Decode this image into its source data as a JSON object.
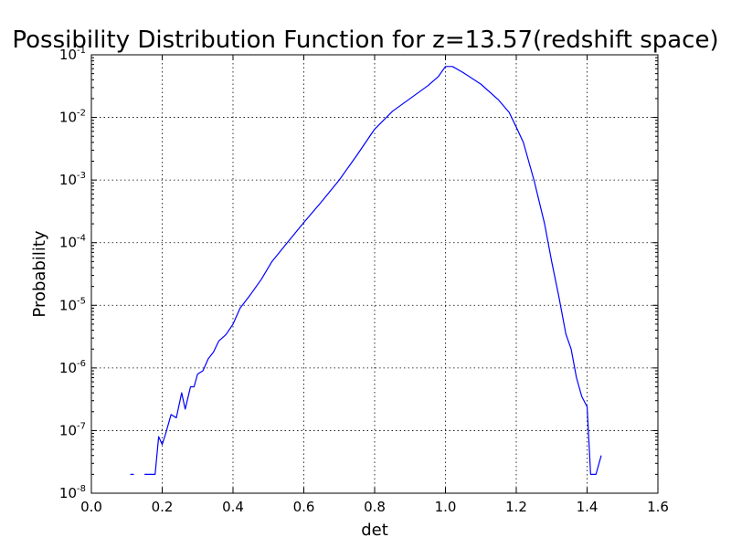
{
  "chart_data": {
    "type": "line",
    "title": "Possibility Distribution Function for z=13.57(redshift space)",
    "xlabel": "det",
    "ylabel": "Probability",
    "xlim": [
      0.0,
      1.6
    ],
    "ylim_log10": [
      -8,
      -1
    ],
    "yscale": "log",
    "grid": true,
    "line_color": "#0000ff",
    "x_ticks": [
      {
        "value": 0.0,
        "label": "0.0"
      },
      {
        "value": 0.2,
        "label": "0.2"
      },
      {
        "value": 0.4,
        "label": "0.4"
      },
      {
        "value": 0.6,
        "label": "0.6"
      },
      {
        "value": 0.8,
        "label": "0.8"
      },
      {
        "value": 1.0,
        "label": "1.0"
      },
      {
        "value": 1.2,
        "label": "1.2"
      },
      {
        "value": 1.4,
        "label": "1.4"
      },
      {
        "value": 1.6,
        "label": "1.6"
      }
    ],
    "y_ticks": [
      {
        "exp": -8,
        "base": "10",
        "power": "-8"
      },
      {
        "exp": -7,
        "base": "10",
        "power": "-7"
      },
      {
        "exp": -6,
        "base": "10",
        "power": "-6"
      },
      {
        "exp": -5,
        "base": "10",
        "power": "-5"
      },
      {
        "exp": -4,
        "base": "10",
        "power": "-4"
      },
      {
        "exp": -3,
        "base": "10",
        "power": "-3"
      },
      {
        "exp": -2,
        "base": "10",
        "power": "-2"
      },
      {
        "exp": -1,
        "base": "10",
        "power": "-1"
      }
    ],
    "series": [
      {
        "segments": [
          [
            [
              0.11,
              2e-08
            ],
            [
              0.12,
              2e-08
            ]
          ],
          [
            [
              0.15,
              2e-08
            ],
            [
              0.18,
              2e-08
            ],
            [
              0.19,
              8e-08
            ],
            [
              0.2,
              6e-08
            ],
            [
              0.21,
              9e-08
            ],
            [
              0.225,
              1.8e-07
            ],
            [
              0.24,
              1.6e-07
            ],
            [
              0.255,
              4e-07
            ],
            [
              0.265,
              2.2e-07
            ],
            [
              0.28,
              5e-07
            ],
            [
              0.29,
              5e-07
            ],
            [
              0.3,
              8e-07
            ],
            [
              0.315,
              9e-07
            ],
            [
              0.33,
              1.4e-06
            ],
            [
              0.345,
              1.8e-06
            ],
            [
              0.36,
              2.7e-06
            ],
            [
              0.38,
              3.4e-06
            ],
            [
              0.4,
              5e-06
            ],
            [
              0.42,
              9e-06
            ],
            [
              0.45,
              1.5e-05
            ],
            [
              0.48,
              2.6e-05
            ],
            [
              0.51,
              5e-05
            ],
            [
              0.55,
              9.5e-05
            ],
            [
              0.6,
              0.00021
            ],
            [
              0.65,
              0.00045
            ],
            [
              0.7,
              0.001
            ],
            [
              0.75,
              0.0025
            ],
            [
              0.8,
              0.0065
            ],
            [
              0.85,
              0.0125
            ],
            [
              0.9,
              0.02
            ],
            [
              0.95,
              0.032
            ],
            [
              0.98,
              0.045
            ],
            [
              1.0,
              0.065
            ],
            [
              1.02,
              0.065
            ],
            [
              1.05,
              0.052
            ],
            [
              1.1,
              0.034
            ],
            [
              1.15,
              0.019
            ],
            [
              1.18,
              0.012
            ],
            [
              1.2,
              0.007
            ],
            [
              1.22,
              0.004
            ],
            [
              1.25,
              0.001
            ],
            [
              1.28,
              0.0002
            ],
            [
              1.3,
              5e-05
            ],
            [
              1.32,
              1.4e-05
            ],
            [
              1.33,
              7e-06
            ],
            [
              1.34,
              3.5e-06
            ],
            [
              1.355,
              2e-06
            ],
            [
              1.37,
              7e-07
            ],
            [
              1.385,
              3.5e-07
            ],
            [
              1.4,
              2.4e-07
            ],
            [
              1.405,
              7e-08
            ],
            [
              1.41,
              2e-08
            ],
            [
              1.425,
              2e-08
            ],
            [
              1.44,
              4e-08
            ]
          ]
        ]
      }
    ]
  }
}
